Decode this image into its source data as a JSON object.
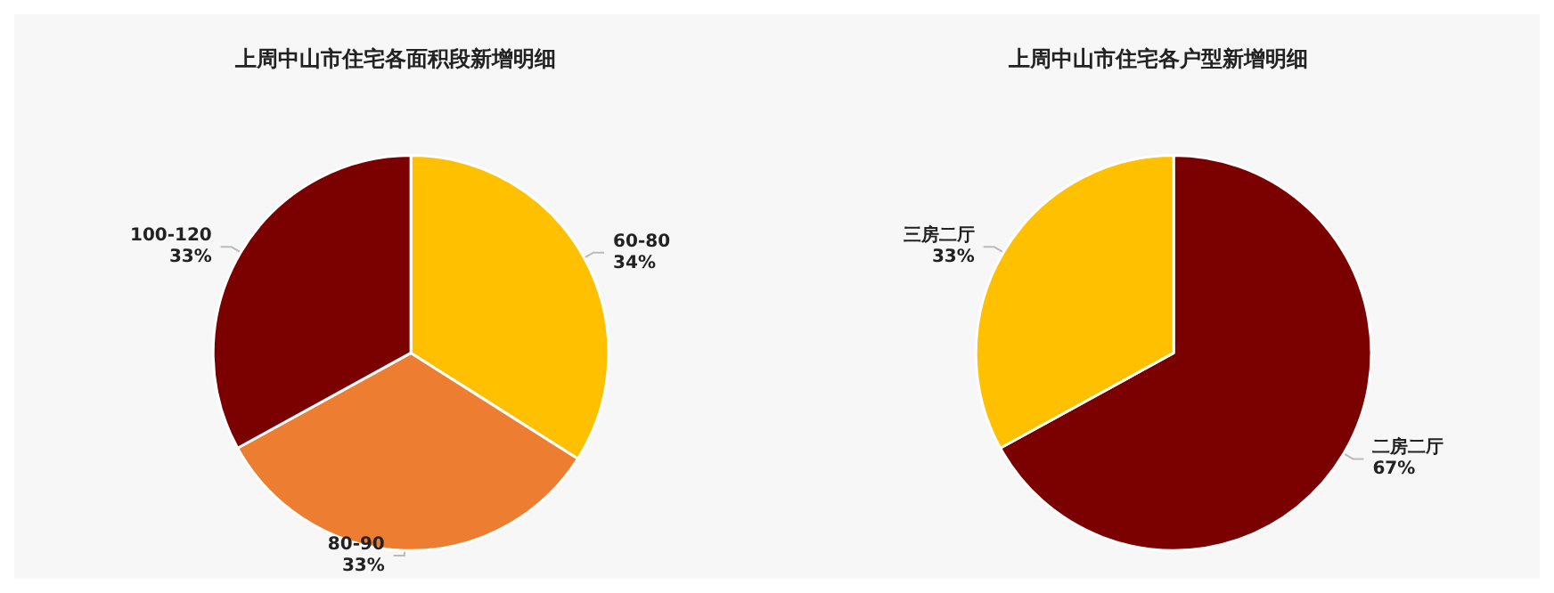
{
  "chart_data": [
    {
      "type": "pie",
      "title": "上周中山市住宅各面积段新增明细",
      "categories": [
        "60-80",
        "80-90",
        "100-120"
      ],
      "values": [
        34,
        33,
        33
      ],
      "colors": [
        "#ffc000",
        "#ed7d31",
        "#7b0000"
      ],
      "value_labels": [
        "34%",
        "33%",
        "33%"
      ]
    },
    {
      "type": "pie",
      "title": "上周中山市住宅各户型新增明细",
      "categories": [
        "二房二厅",
        "三房二厅"
      ],
      "values": [
        67,
        33
      ],
      "colors": [
        "#7b0000",
        "#ffc000"
      ],
      "value_labels": [
        "67%",
        "33%"
      ]
    }
  ]
}
